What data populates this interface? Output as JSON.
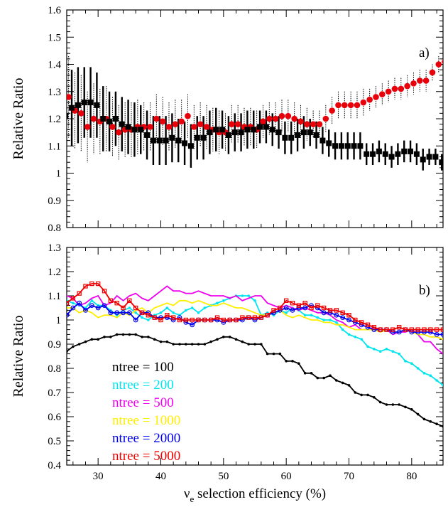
{
  "chart_data": [
    {
      "type": "scatter",
      "panel_label": "a)",
      "ylabel": "Relative Ratio",
      "xlim": [
        25,
        85
      ],
      "ylim": [
        0.8,
        1.6
      ],
      "yticks": [
        "0.8",
        "0.9",
        "1",
        "1.1",
        "1.2",
        "1.3",
        "1.4",
        "1.5",
        "1.6"
      ],
      "series": [
        {
          "marker": "square",
          "color": "#000000",
          "error_style": "solid",
          "x": [
            25,
            26,
            27,
            28,
            29,
            30,
            31,
            32,
            33,
            34,
            35,
            36,
            37,
            38,
            39,
            40,
            41,
            42,
            43,
            44,
            45,
            46,
            47,
            48,
            49,
            50,
            51,
            52,
            53,
            54,
            55,
            56,
            57,
            58,
            59,
            60,
            61,
            62,
            63,
            64,
            65,
            66,
            67,
            68,
            69,
            70,
            71,
            72,
            73,
            74,
            75,
            76,
            77,
            78,
            79,
            80,
            81,
            82,
            83,
            84,
            85
          ],
          "y": [
            1.21,
            1.24,
            1.25,
            1.26,
            1.26,
            1.25,
            1.2,
            1.19,
            1.2,
            1.18,
            1.17,
            1.16,
            1.16,
            1.14,
            1.12,
            1.12,
            1.12,
            1.13,
            1.12,
            1.11,
            1.1,
            1.13,
            1.13,
            1.15,
            1.16,
            1.16,
            1.14,
            1.15,
            1.15,
            1.16,
            1.16,
            1.17,
            1.17,
            1.16,
            1.15,
            1.13,
            1.13,
            1.14,
            1.15,
            1.15,
            1.14,
            1.12,
            1.11,
            1.1,
            1.1,
            1.1,
            1.1,
            1.1,
            1.07,
            1.07,
            1.08,
            1.07,
            1.06,
            1.07,
            1.08,
            1.08,
            1.07,
            1.05,
            1.06,
            1.06,
            1.04
          ],
          "err": [
            0.15,
            0.14,
            0.14,
            0.13,
            0.13,
            0.12,
            0.12,
            0.11,
            0.1,
            0.1,
            0.1,
            0.1,
            0.09,
            0.09,
            0.09,
            0.09,
            0.09,
            0.09,
            0.08,
            0.08,
            0.08,
            0.08,
            0.08,
            0.08,
            0.08,
            0.07,
            0.07,
            0.07,
            0.07,
            0.07,
            0.07,
            0.06,
            0.06,
            0.06,
            0.06,
            0.06,
            0.06,
            0.06,
            0.06,
            0.05,
            0.05,
            0.05,
            0.05,
            0.05,
            0.05,
            0.05,
            0.05,
            0.05,
            0.04,
            0.04,
            0.04,
            0.04,
            0.04,
            0.04,
            0.04,
            0.04,
            0.04,
            0.04,
            0.03,
            0.03,
            0.03
          ]
        },
        {
          "marker": "circle",
          "color": "#e8000b",
          "error_style": "dotted",
          "x": [
            25,
            26,
            27,
            28,
            29,
            30,
            31,
            32,
            33,
            34,
            35,
            36,
            37,
            38,
            39,
            40,
            41,
            42,
            43,
            44,
            45,
            46,
            47,
            48,
            49,
            50,
            51,
            52,
            53,
            54,
            55,
            56,
            57,
            58,
            59,
            60,
            61,
            62,
            63,
            64,
            65,
            66,
            67,
            68,
            69,
            70,
            71,
            72,
            73,
            74,
            75,
            76,
            77,
            78,
            79,
            80,
            81,
            82,
            83,
            84,
            85
          ],
          "y": [
            1.28,
            1.23,
            1.22,
            1.17,
            1.2,
            1.19,
            1.2,
            1.17,
            1.15,
            1.16,
            1.16,
            1.17,
            1.17,
            1.17,
            1.2,
            1.19,
            1.17,
            1.18,
            1.19,
            1.21,
            1.17,
            1.18,
            1.17,
            1.16,
            1.15,
            1.15,
            1.18,
            1.18,
            1.17,
            1.17,
            1.16,
            1.19,
            1.2,
            1.2,
            1.21,
            1.21,
            1.2,
            1.19,
            1.18,
            1.18,
            1.18,
            1.2,
            1.23,
            1.25,
            1.25,
            1.25,
            1.25,
            1.26,
            1.27,
            1.28,
            1.29,
            1.3,
            1.31,
            1.31,
            1.32,
            1.33,
            1.34,
            1.34,
            1.37,
            1.4,
            1.41
          ],
          "err": [
            0.15,
            0.14,
            0.14,
            0.13,
            0.13,
            0.12,
            0.12,
            0.11,
            0.1,
            0.1,
            0.1,
            0.1,
            0.09,
            0.09,
            0.09,
            0.09,
            0.09,
            0.09,
            0.08,
            0.08,
            0.08,
            0.08,
            0.08,
            0.08,
            0.08,
            0.07,
            0.07,
            0.07,
            0.07,
            0.07,
            0.07,
            0.06,
            0.06,
            0.06,
            0.06,
            0.06,
            0.06,
            0.06,
            0.06,
            0.05,
            0.05,
            0.05,
            0.05,
            0.05,
            0.05,
            0.05,
            0.05,
            0.05,
            0.04,
            0.04,
            0.04,
            0.04,
            0.04,
            0.04,
            0.04,
            0.04,
            0.04,
            0.04,
            0.03,
            0.03,
            0.03
          ]
        }
      ]
    },
    {
      "type": "line",
      "panel_label": "b)",
      "xlabel_prefix": "ν",
      "xlabel_sub": "e",
      "xlabel_rest": " selection efficiency (%)",
      "ylabel": "Relative Ratio",
      "xlim": [
        25,
        85
      ],
      "ylim": [
        0.4,
        1.3
      ],
      "xticks": [
        "30",
        "40",
        "50",
        "60",
        "70",
        "80"
      ],
      "yticks": [
        "0.4",
        "0.5",
        "0.6",
        "0.7",
        "0.8",
        "0.9",
        "1",
        "1.1",
        "1.2",
        "1.3"
      ],
      "x": [
        25,
        26,
        27,
        28,
        29,
        30,
        31,
        32,
        33,
        34,
        35,
        36,
        37,
        38,
        39,
        40,
        41,
        42,
        43,
        44,
        45,
        46,
        47,
        48,
        49,
        50,
        51,
        52,
        53,
        54,
        55,
        56,
        57,
        58,
        59,
        60,
        61,
        62,
        63,
        64,
        65,
        66,
        67,
        68,
        69,
        70,
        71,
        72,
        73,
        74,
        75,
        76,
        77,
        78,
        79,
        80,
        81,
        82,
        83,
        84,
        85
      ],
      "legend_position": "bottom-left",
      "series": [
        {
          "name": "ntree = 100",
          "color": "#000000",
          "marker": "dot",
          "values": [
            0.87,
            0.89,
            0.9,
            0.91,
            0.92,
            0.92,
            0.93,
            0.93,
            0.94,
            0.94,
            0.94,
            0.94,
            0.93,
            0.93,
            0.92,
            0.91,
            0.91,
            0.9,
            0.9,
            0.9,
            0.9,
            0.9,
            0.9,
            0.91,
            0.92,
            0.93,
            0.93,
            0.92,
            0.91,
            0.9,
            0.9,
            0.9,
            0.86,
            0.86,
            0.86,
            0.83,
            0.83,
            0.82,
            0.78,
            0.78,
            0.76,
            0.76,
            0.77,
            0.75,
            0.74,
            0.73,
            0.7,
            0.69,
            0.69,
            0.68,
            0.66,
            0.65,
            0.65,
            0.65,
            0.64,
            0.63,
            0.61,
            0.59,
            0.58,
            0.57,
            0.56
          ]
        },
        {
          "name": "ntree = 200",
          "color": "#00e5ee",
          "marker": "dot",
          "values": [
            1.08,
            1.07,
            1.06,
            1.05,
            1.08,
            1.06,
            1.06,
            1.04,
            1.02,
            1.04,
            1.05,
            1.03,
            1.01,
            1.0,
            1.02,
            1.03,
            1.05,
            1.03,
            1.02,
            1.04,
            1.05,
            1.03,
            1.05,
            1.06,
            1.07,
            1.08,
            1.09,
            1.1,
            1.1,
            1.1,
            1.08,
            1.02,
            1.03,
            1.02,
            1.04,
            1.03,
            1.05,
            1.04,
            1.02,
            1.02,
            1.01,
            1.0,
            1.0,
            0.99,
            0.96,
            0.94,
            0.93,
            0.92,
            0.89,
            0.88,
            0.87,
            0.88,
            0.87,
            0.86,
            0.83,
            0.82,
            0.8,
            0.78,
            0.77,
            0.75,
            0.73
          ]
        },
        {
          "name": "ntree = 500",
          "color": "#ee00ee",
          "marker": "none",
          "values": [
            1.1,
            1.09,
            1.06,
            1.07,
            1.09,
            1.1,
            1.06,
            1.07,
            1.1,
            1.08,
            1.1,
            1.11,
            1.09,
            1.08,
            1.1,
            1.12,
            1.14,
            1.12,
            1.12,
            1.11,
            1.11,
            1.12,
            1.11,
            1.1,
            1.1,
            1.1,
            1.09,
            1.1,
            1.08,
            1.09,
            1.1,
            1.1,
            1.07,
            1.06,
            1.05,
            1.06,
            1.05,
            1.04,
            1.05,
            1.04,
            1.03,
            1.03,
            1.02,
            1.0,
            0.99,
            0.97,
            0.98,
            0.96,
            0.96,
            0.97,
            0.95,
            0.96,
            0.94,
            0.95,
            0.95,
            0.96,
            0.94,
            0.91,
            0.91,
            0.88,
            0.86
          ]
        },
        {
          "name": "ntree = 1000",
          "color": "#ffee00",
          "marker": "none",
          "values": [
            1.05,
            1.05,
            1.03,
            1.04,
            1.03,
            1.01,
            1.02,
            1.02,
            1.01,
            1.03,
            1.02,
            1.04,
            1.05,
            1.03,
            1.05,
            1.06,
            1.07,
            1.06,
            1.08,
            1.08,
            1.07,
            1.08,
            1.07,
            1.06,
            1.06,
            1.07,
            1.06,
            1.05,
            1.05,
            1.04,
            1.03,
            1.02,
            1.02,
            1.03,
            1.04,
            1.02,
            1.01,
            1.02,
            1.01,
            1.0,
            1.0,
            0.99,
            0.99,
            0.98,
            0.98,
            0.97,
            0.96,
            0.96,
            0.96,
            0.96,
            0.95,
            0.96,
            0.95,
            0.95,
            0.96,
            0.95,
            0.94,
            0.94,
            0.93,
            0.93,
            0.92
          ]
        },
        {
          "name": "ntree = 2000",
          "color": "#0000ee",
          "marker": "circle-open",
          "values": [
            1.02,
            1.05,
            1.07,
            1.04,
            1.06,
            1.05,
            1.06,
            1.03,
            1.03,
            1.03,
            1.03,
            1.0,
            1.03,
            1.03,
            1.01,
            1.01,
            1.01,
            1.0,
            1.01,
            0.99,
            0.98,
            1.0,
            1.0,
            1.0,
            1.0,
            0.99,
            1.0,
            1.0,
            1.0,
            1.01,
            1.0,
            1.01,
            1.02,
            1.03,
            1.04,
            1.05,
            1.04,
            1.05,
            1.05,
            1.06,
            1.05,
            1.03,
            1.03,
            1.02,
            1.01,
            1.0,
            0.99,
            0.98,
            0.97,
            0.96,
            0.96,
            0.96,
            0.95,
            0.95,
            0.96,
            0.95,
            0.95,
            0.95,
            0.95,
            0.94,
            0.94
          ]
        },
        {
          "name": "ntree = 5000",
          "color": "#ee0000",
          "marker": "square-open",
          "values": [
            1.07,
            1.09,
            1.11,
            1.14,
            1.15,
            1.15,
            1.12,
            1.08,
            1.07,
            1.05,
            1.08,
            1.05,
            1.03,
            1.02,
            1.01,
            1.0,
            1.02,
            1.01,
            1.0,
            1.0,
            1.0,
            1.0,
            1.0,
            1.0,
            1.01,
            1.0,
            1.0,
            1.0,
            1.01,
            1.01,
            1.01,
            1.01,
            1.02,
            1.04,
            1.05,
            1.08,
            1.07,
            1.06,
            1.07,
            1.05,
            1.06,
            1.05,
            1.04,
            1.04,
            1.03,
            1.02,
            1.0,
            0.99,
            0.98,
            0.97,
            0.96,
            0.96,
            0.96,
            0.97,
            0.96,
            0.96,
            0.96,
            0.96,
            0.96,
            0.96,
            0.96
          ]
        }
      ]
    }
  ]
}
